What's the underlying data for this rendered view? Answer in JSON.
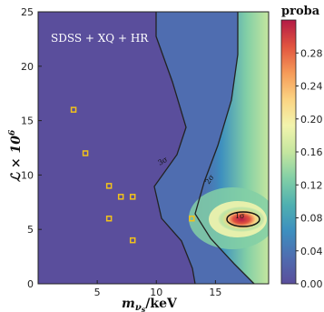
{
  "chart_data": {
    "type": "heatmap",
    "annotation": "SDSS + XQ + HR",
    "xlabel_main": "m",
    "xlabel_sub": "ν",
    "xlabel_subsub": "s",
    "xlabel_unit": "/keV",
    "ylabel": "ℒ × 10",
    "ylabel_exp": "6",
    "xlim": [
      0,
      19.5
    ],
    "ylim": [
      0,
      25
    ],
    "x_ticks": [
      5,
      10,
      15
    ],
    "y_ticks": [
      0,
      5,
      10,
      15,
      20,
      25
    ],
    "colorbar": {
      "title": "proba",
      "range": [
        0,
        0.32
      ],
      "ticks": [
        "0.00",
        "0.04",
        "0.08",
        "0.12",
        "0.16",
        "0.20",
        "0.24",
        "0.28"
      ],
      "colors": [
        "#5a4e9c",
        "#4f6db0",
        "#3d8fbf",
        "#4fb0b0",
        "#82cfa6",
        "#c5e69f",
        "#f2f4ad",
        "#fbd382",
        "#f59a58",
        "#e1543f",
        "#b31a46"
      ]
    },
    "contour_labels": [
      "3σ",
      "2σ",
      "1σ"
    ],
    "markers": [
      {
        "x": 3,
        "y": 16
      },
      {
        "x": 4,
        "y": 12
      },
      {
        "x": 6,
        "y": 9
      },
      {
        "x": 7,
        "y": 8
      },
      {
        "x": 8,
        "y": 8
      },
      {
        "x": 6,
        "y": 6
      },
      {
        "x": 8,
        "y": 4
      },
      {
        "x": 13,
        "y": 6
      }
    ],
    "marker_color": "#f2c21a"
  }
}
